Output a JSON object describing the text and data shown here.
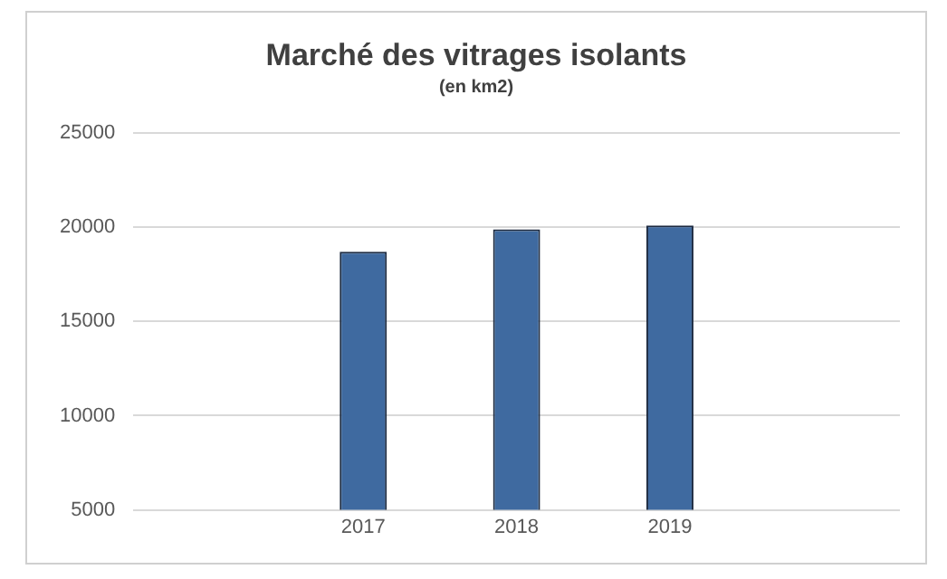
{
  "chart_data": {
    "type": "bar",
    "title": "Marché des vitrages isolants",
    "subtitle": "(en km2)",
    "categories": [
      null,
      "2017",
      "2018",
      "2019",
      null
    ],
    "values": [
      null,
      18700,
      19900,
      20100,
      null
    ],
    "color": "#3f6aa0",
    "ylim": [
      5000,
      25000
    ],
    "yticks": [
      5000,
      10000,
      15000,
      20000,
      25000
    ],
    "grid": "y"
  }
}
